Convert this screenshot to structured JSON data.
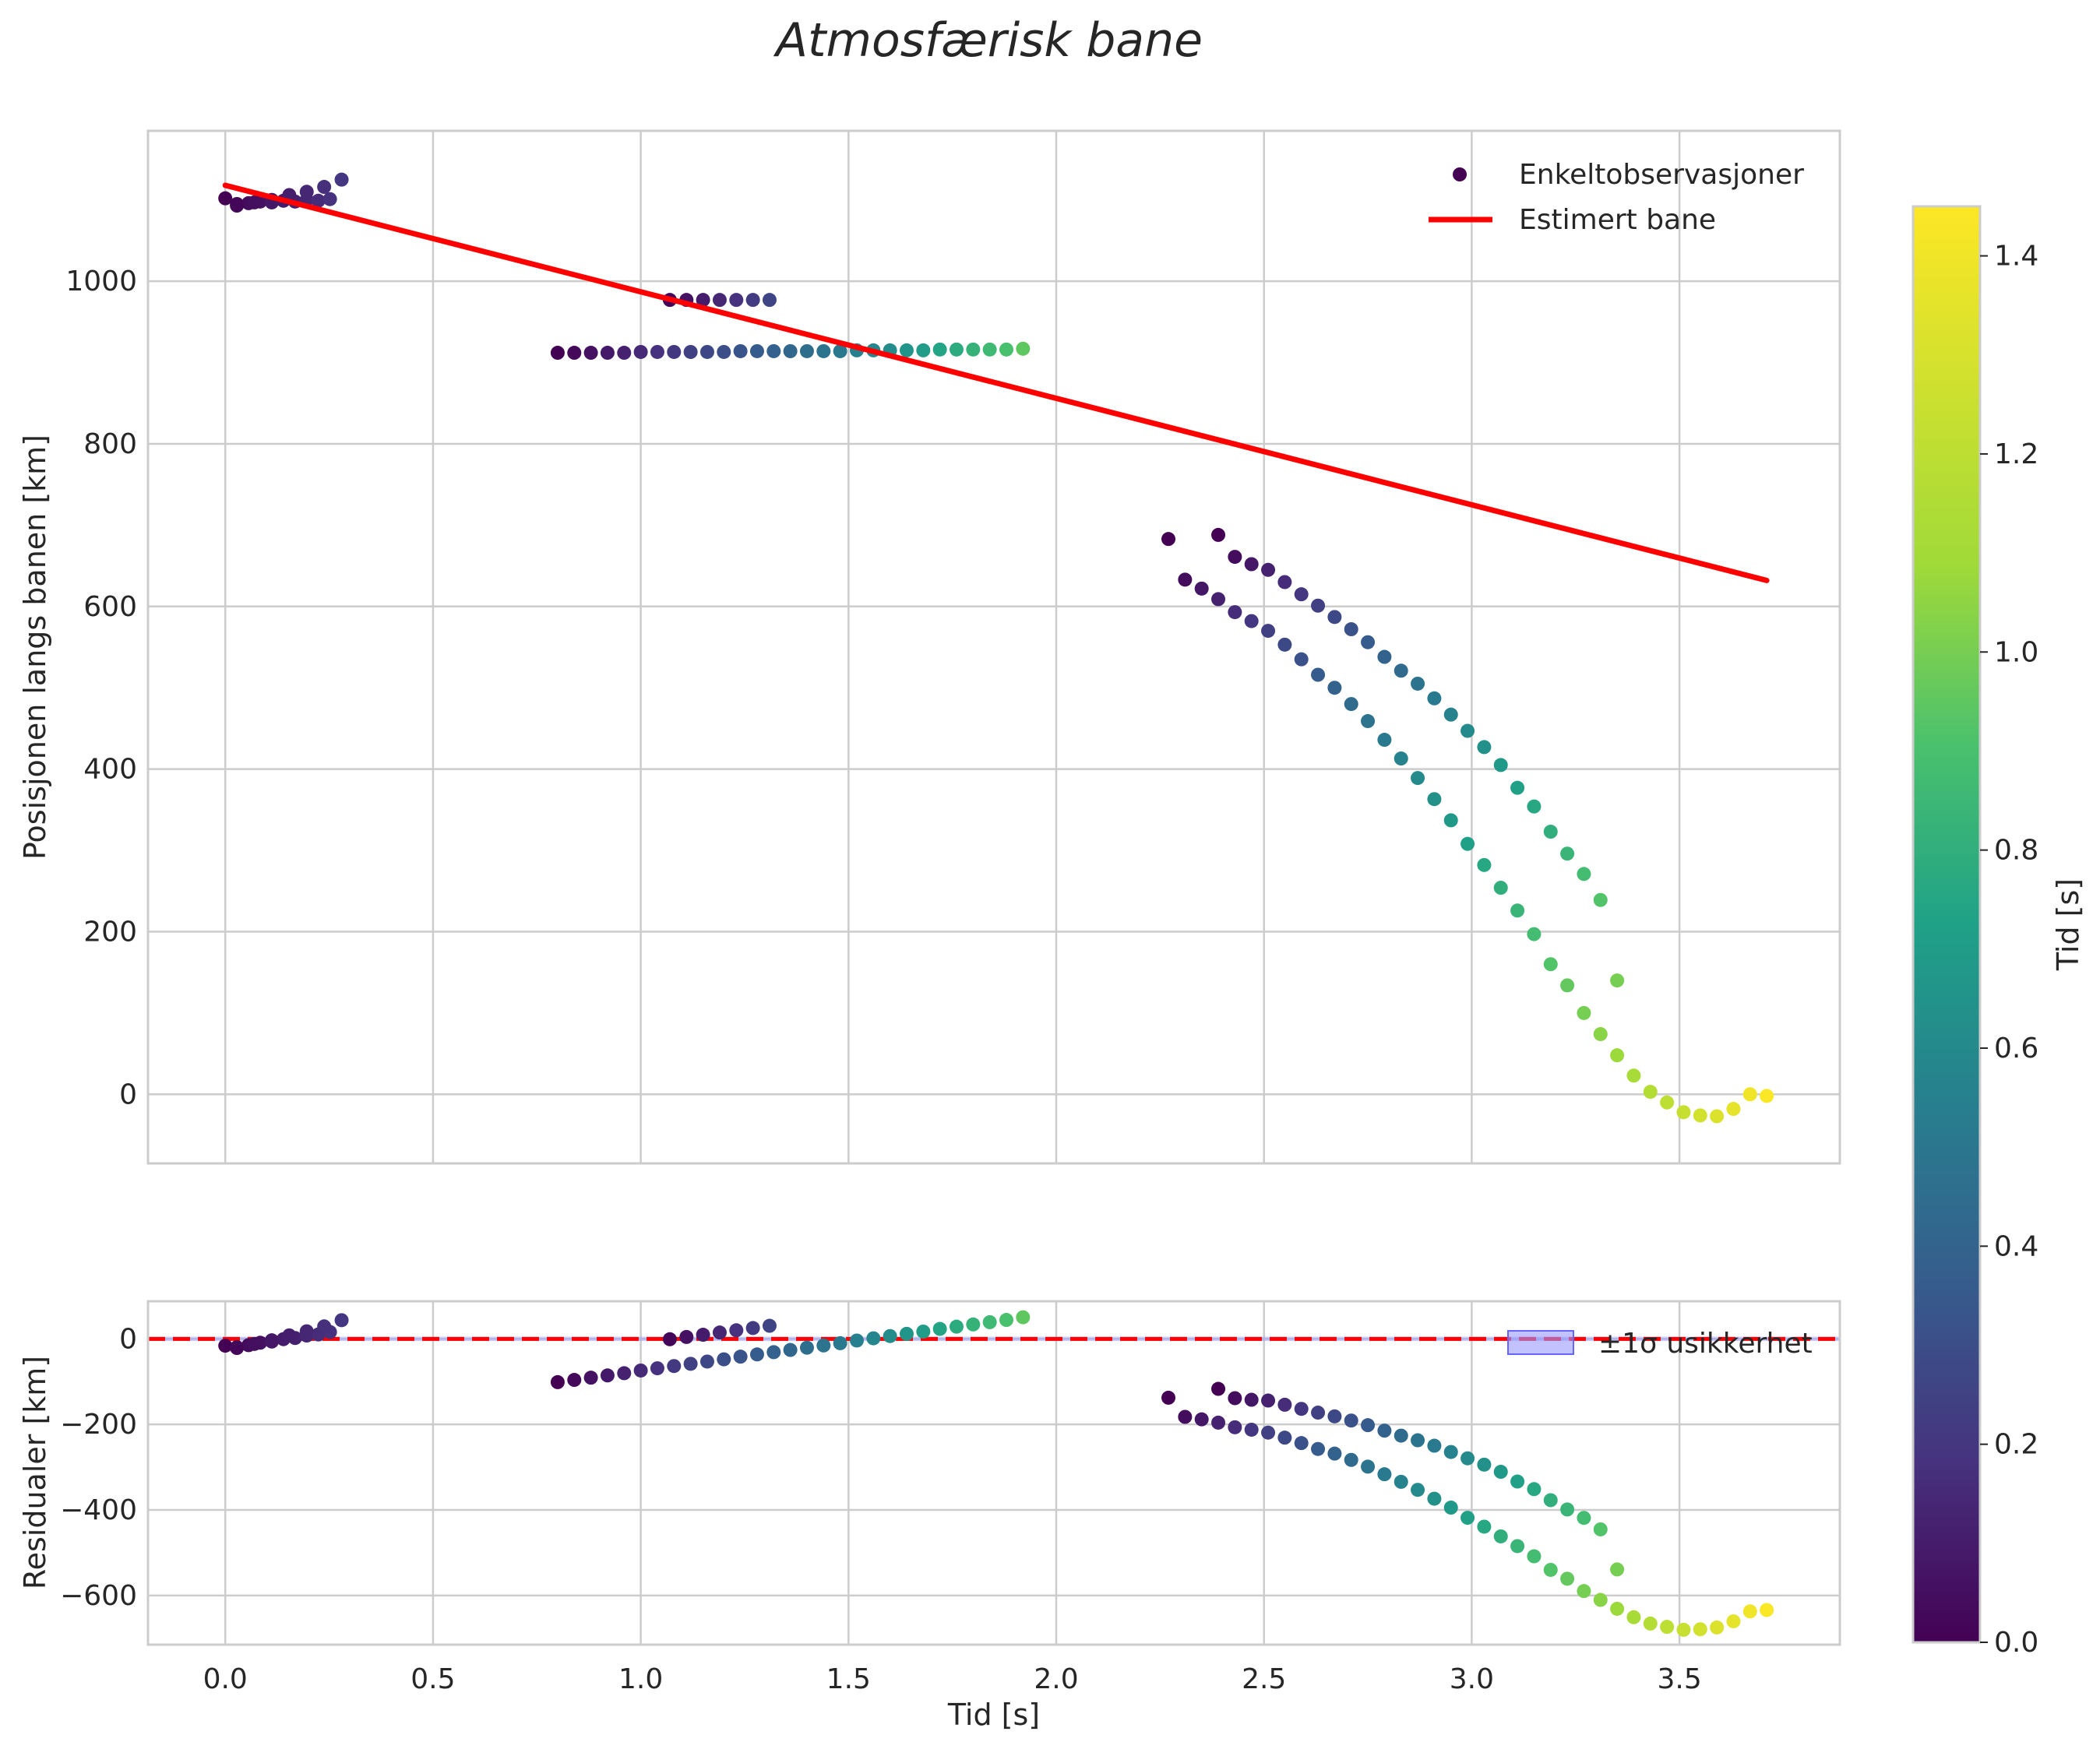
{
  "chart_data": [
    {
      "type": "scatter",
      "panel": "top",
      "title": "Atmosfærisk bane",
      "xlabel": "",
      "ylabel": "Posisjonen langs banen [km]",
      "xlim": [
        -0.186,
        3.886
      ],
      "ylim": [
        -85,
        1185
      ],
      "xticks": [
        0.0,
        0.5,
        1.0,
        1.5,
        2.0,
        2.5,
        3.0,
        3.5
      ],
      "xtick_labels": [
        "0.0",
        "0.5",
        "1.0",
        "1.5",
        "2.0",
        "2.5",
        "3.0",
        "3.5"
      ],
      "yticks": [
        0,
        200,
        400,
        600,
        800,
        1000
      ],
      "ytick_labels": [
        "0",
        "200",
        "400",
        "600",
        "800",
        "1000"
      ],
      "grid": true,
      "legend": {
        "location": "top-right",
        "entries": [
          "Enkeltobservasjoner",
          "Estimert bane"
        ]
      },
      "estimated_track": {
        "name": "Estimert bane",
        "color": "#ff0000",
        "x": [
          0.0,
          3.71
        ],
        "y": [
          1118,
          632
        ]
      },
      "series": [
        {
          "name": "Enkeltobservasjoner",
          "note": "group 1 (t approx 0.0-0.28 s)",
          "x": [
            0.0,
            0.028,
            0.056,
            0.084,
            0.112,
            0.14,
            0.168,
            0.196,
            0.224,
            0.252,
            0.028,
            0.07,
            0.112,
            0.154,
            0.196,
            0.238,
            0.28
          ],
          "y": [
            1102,
            1095,
            1096,
            1098,
            1097,
            1099,
            1098,
            1100,
            1099,
            1101,
            1093,
            1097,
            1100,
            1106,
            1110,
            1116,
            1125
          ],
          "c": [
            0.0,
            0.02,
            0.04,
            0.06,
            0.08,
            0.1,
            0.12,
            0.14,
            0.16,
            0.18,
            0.02,
            0.05,
            0.08,
            0.11,
            0.14,
            0.17,
            0.2
          ]
        },
        {
          "name": "Enkeltobservasjoner",
          "note": "group 2 (t approx 0.8-1.94 s)",
          "x": [
            0.8,
            0.84,
            0.88,
            0.92,
            0.96,
            1.0,
            1.04,
            1.08,
            1.12,
            1.16,
            1.2,
            1.24,
            1.28,
            1.32,
            1.36,
            1.4,
            1.44,
            1.48,
            1.52,
            1.56,
            1.6,
            1.64,
            1.68,
            1.72,
            1.76,
            1.8,
            1.84,
            1.88,
            1.92,
            1.07,
            1.11,
            1.15,
            1.19,
            1.23,
            1.27,
            1.31
          ],
          "y": [
            912,
            912,
            912,
            912,
            912,
            913,
            913,
            913,
            913,
            913,
            913,
            914,
            914,
            914,
            914,
            914,
            914,
            914,
            915,
            915,
            915,
            915,
            915,
            916,
            916,
            916,
            916,
            916,
            917,
            977,
            977,
            977,
            977,
            977,
            977,
            977
          ],
          "c": [
            0.0,
            0.03,
            0.06,
            0.09,
            0.12,
            0.15,
            0.18,
            0.21,
            0.24,
            0.27,
            0.3,
            0.33,
            0.36,
            0.39,
            0.42,
            0.45,
            0.48,
            0.51,
            0.55,
            0.58,
            0.62,
            0.66,
            0.7,
            0.74,
            0.78,
            0.82,
            0.86,
            0.9,
            0.95,
            0.02,
            0.06,
            0.1,
            0.14,
            0.18,
            0.22,
            0.26
          ]
        },
        {
          "name": "Enkeltobservasjoner",
          "note": "group 3a (t approx 2.27-3.71 s)",
          "x": [
            2.27,
            2.31,
            2.35,
            2.39,
            2.43,
            2.47,
            2.51,
            2.55,
            2.59,
            2.63,
            2.67,
            2.71,
            2.75,
            2.79,
            2.83,
            2.87,
            2.91,
            2.95,
            2.99,
            3.03,
            3.07,
            3.11,
            3.15,
            3.19,
            3.23,
            3.27,
            3.31,
            3.35,
            3.39,
            3.43,
            3.47,
            3.51,
            3.55,
            3.59,
            3.63,
            3.67,
            3.71
          ],
          "y": [
            683,
            633,
            622,
            609,
            593,
            582,
            570,
            553,
            535,
            516,
            500,
            480,
            459,
            436,
            413,
            389,
            363,
            337,
            308,
            282,
            254,
            226,
            197,
            160,
            134,
            100,
            74,
            48,
            23,
            3,
            -10,
            -22,
            -26,
            -27,
            -18,
            0,
            -2
          ],
          "c": [
            0.0,
            0.04,
            0.08,
            0.12,
            0.16,
            0.2,
            0.24,
            0.28,
            0.32,
            0.36,
            0.4,
            0.44,
            0.48,
            0.52,
            0.56,
            0.6,
            0.64,
            0.68,
            0.72,
            0.76,
            0.8,
            0.84,
            0.88,
            0.92,
            0.96,
            1.0,
            1.04,
            1.08,
            1.12,
            1.16,
            1.2,
            1.24,
            1.28,
            1.32,
            1.36,
            1.4,
            1.44
          ]
        },
        {
          "name": "Enkeltobservasjoner",
          "note": "group 3b (t approx 2.39-3.35 s)",
          "x": [
            2.39,
            2.43,
            2.47,
            2.51,
            2.55,
            2.59,
            2.63,
            2.67,
            2.71,
            2.75,
            2.79,
            2.83,
            2.87,
            2.91,
            2.95,
            2.99,
            3.03,
            3.07,
            3.11,
            3.15,
            3.19,
            3.23,
            3.27,
            3.31,
            3.35
          ],
          "y": [
            688,
            661,
            652,
            645,
            630,
            615,
            601,
            587,
            572,
            556,
            538,
            521,
            505,
            487,
            467,
            447,
            427,
            405,
            377,
            354,
            323,
            296,
            271,
            239,
            140
          ],
          "c": [
            0.0,
            0.04,
            0.08,
            0.12,
            0.16,
            0.2,
            0.24,
            0.28,
            0.32,
            0.36,
            0.4,
            0.44,
            0.48,
            0.52,
            0.56,
            0.6,
            0.64,
            0.68,
            0.72,
            0.76,
            0.8,
            0.84,
            0.88,
            0.92,
            1.0
          ]
        }
      ]
    },
    {
      "type": "scatter",
      "panel": "bottom",
      "xlabel": "Tid [s]",
      "ylabel": "Residualer [km]",
      "xlim": [
        -0.186,
        3.886
      ],
      "ylim": [
        -715,
        88
      ],
      "xticks": [
        0.0,
        0.5,
        1.0,
        1.5,
        2.0,
        2.5,
        3.0,
        3.5
      ],
      "xtick_labels": [
        "0.0",
        "0.5",
        "1.0",
        "1.5",
        "2.0",
        "2.5",
        "3.0",
        "3.5"
      ],
      "yticks": [
        -600,
        -400,
        -200,
        0
      ],
      "ytick_labels": [
        "−600",
        "−400",
        "−200",
        "0"
      ],
      "grid": true,
      "zero_line": {
        "y": 0,
        "color": "#ff0000",
        "style": "dashed"
      },
      "uncertainty_band": {
        "lower": -5,
        "upper": 5,
        "color": "#0000ff"
      },
      "legend": {
        "location": "top-right",
        "entries": [
          "±1σ usikkerhet"
        ]
      }
    }
  ],
  "colorbar": {
    "label": "Tid [s]",
    "colormap": "viridis",
    "range": [
      0.0,
      1.45
    ],
    "ticks": [
      0.0,
      0.2,
      0.4,
      0.6,
      0.8,
      1.0,
      1.2,
      1.4
    ],
    "tick_labels": [
      "0.0",
      "0.2",
      "0.4",
      "0.6",
      "0.8",
      "1.0",
      "1.2",
      "1.4"
    ]
  },
  "colors": {
    "track": "#ff0000",
    "grid": "#cccccc",
    "frame": "#cccccc",
    "band_fill": "#9999ff",
    "band_edge": "#6666ff",
    "legend_marker": "#440154"
  }
}
